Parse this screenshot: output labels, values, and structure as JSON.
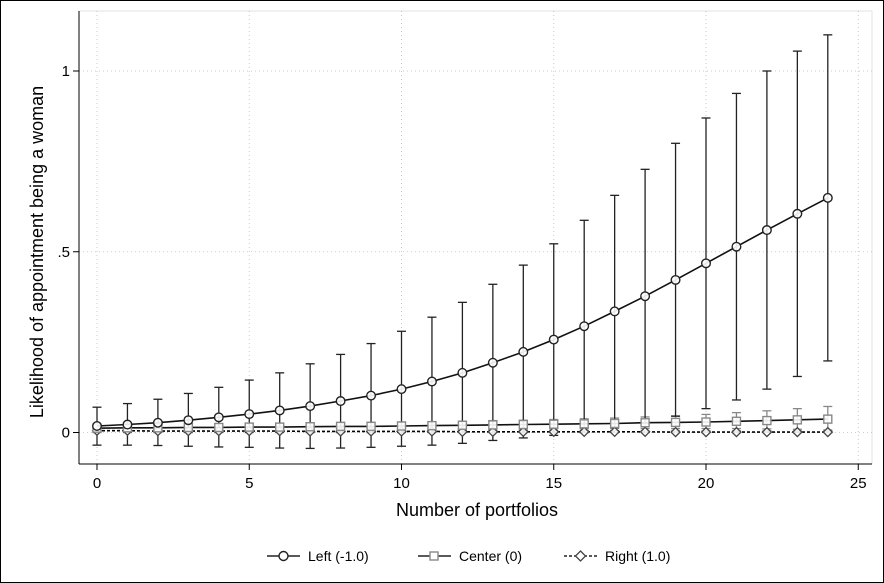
{
  "chart_data": {
    "type": "line",
    "xlabel": "Number of portfolios",
    "ylabel": "Likelihood of appointment being a woman",
    "xlim": [
      0,
      25
    ],
    "ylim": [
      0,
      1.1
    ],
    "x_ticks": [
      0,
      5,
      10,
      15,
      20,
      25
    ],
    "x_tick_labels": [
      "0",
      "5",
      "10",
      "15",
      "20",
      "25"
    ],
    "y_ticks": [
      0,
      0.5,
      1
    ],
    "y_tick_labels": [
      "0",
      ".5",
      "1"
    ],
    "grid": true,
    "legend_position": "bottom",
    "x": [
      0,
      1,
      2,
      3,
      4,
      5,
      6,
      7,
      8,
      9,
      10,
      11,
      12,
      13,
      14,
      15,
      16,
      17,
      18,
      19,
      20,
      21,
      22,
      23,
      24
    ],
    "series": [
      {
        "name": "Left (-1.0)",
        "color": "#222222",
        "marker": "circle",
        "line_style": "solid",
        "values": [
          0.018,
          0.022,
          0.027,
          0.034,
          0.042,
          0.051,
          0.061,
          0.073,
          0.087,
          0.102,
          0.12,
          0.141,
          0.165,
          0.193,
          0.223,
          0.257,
          0.294,
          0.335,
          0.377,
          0.422,
          0.468,
          0.514,
          0.56,
          0.605,
          0.649
        ],
        "upper": [
          0.07,
          0.08,
          0.092,
          0.108,
          0.125,
          0.145,
          0.165,
          0.19,
          0.216,
          0.246,
          0.28,
          0.319,
          0.36,
          0.41,
          0.463,
          0.522,
          0.587,
          0.656,
          0.728,
          0.8,
          0.87,
          0.938,
          1.0,
          1.055,
          1.1
        ],
        "lower": [
          -0.035,
          -0.035,
          -0.036,
          -0.038,
          -0.04,
          -0.041,
          -0.043,
          -0.044,
          -0.043,
          -0.041,
          -0.038,
          -0.035,
          -0.03,
          -0.022,
          -0.015,
          -0.008,
          0.0,
          0.014,
          0.025,
          0.045,
          0.066,
          0.09,
          0.12,
          0.155,
          0.198
        ]
      },
      {
        "name": "Center (0)",
        "color": "#888888",
        "marker": "square",
        "line_style": "solid",
        "values": [
          0.012,
          0.013,
          0.013,
          0.014,
          0.014,
          0.015,
          0.015,
          0.016,
          0.017,
          0.017,
          0.018,
          0.019,
          0.02,
          0.021,
          0.022,
          0.023,
          0.024,
          0.025,
          0.027,
          0.028,
          0.029,
          0.031,
          0.033,
          0.035,
          0.037
        ],
        "upper": [
          0.02,
          0.021,
          0.022,
          0.023,
          0.024,
          0.024,
          0.025,
          0.026,
          0.027,
          0.028,
          0.029,
          0.03,
          0.031,
          0.033,
          0.034,
          0.036,
          0.038,
          0.04,
          0.043,
          0.046,
          0.05,
          0.055,
          0.06,
          0.066,
          0.072
        ],
        "lower": [
          0.004,
          0.004,
          0.004,
          0.005,
          0.005,
          0.005,
          0.005,
          0.006,
          0.006,
          0.006,
          0.007,
          0.007,
          0.008,
          0.008,
          0.009,
          0.01,
          0.01,
          0.011,
          0.011,
          0.011,
          0.011,
          0.011,
          0.01,
          0.009,
          0.007
        ]
      },
      {
        "name": "Right (1.0)",
        "color": "#444444",
        "marker": "diamond",
        "line_style": "dashed",
        "values": [
          0.005,
          0.005,
          0.004,
          0.004,
          0.004,
          0.004,
          0.004,
          0.003,
          0.003,
          0.003,
          0.003,
          0.003,
          0.002,
          0.002,
          0.002,
          0.002,
          0.002,
          0.002,
          0.002,
          0.001,
          0.001,
          0.001,
          0.001,
          0.001,
          0.001
        ],
        "upper": [
          0.01,
          0.01,
          0.009,
          0.009,
          0.009,
          0.008,
          0.008,
          0.008,
          0.007,
          0.007,
          0.007,
          0.006,
          0.006,
          0.006,
          0.005,
          0.005,
          0.005,
          0.005,
          0.004,
          0.004,
          0.004,
          0.004,
          0.004,
          0.004,
          0.004
        ],
        "lower": [
          0.0,
          0.0,
          0.0,
          0.0,
          0.0,
          0.0,
          0.0,
          0.0,
          0.0,
          0.0,
          0.0,
          0.0,
          0.0,
          0.0,
          0.0,
          0.0,
          0.0,
          0.0,
          0.0,
          0.0,
          0.0,
          0.0,
          0.0,
          0.0,
          0.0
        ]
      }
    ]
  },
  "legend": {
    "items": [
      {
        "label": "Left (-1.0)"
      },
      {
        "label": "Center (0)"
      },
      {
        "label": "Right (1.0)"
      }
    ]
  }
}
